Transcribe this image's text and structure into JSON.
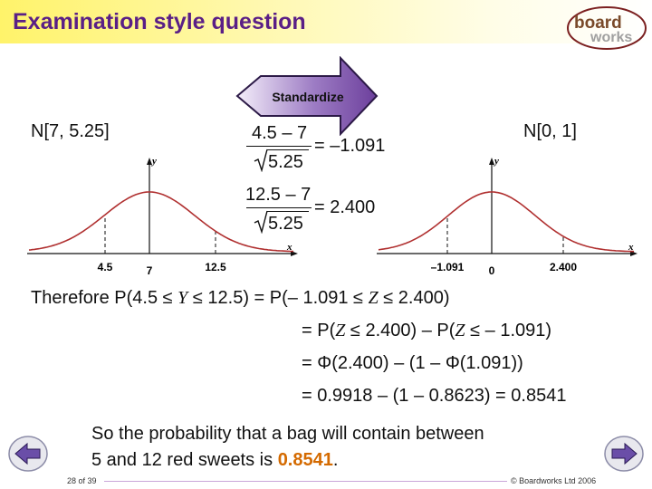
{
  "header": {
    "title": "Examination style question"
  },
  "logo": {
    "line1": "board",
    "line2": "works"
  },
  "arrow": {
    "label": "Standardize"
  },
  "left_dist": {
    "label": "N[7, 5.25]"
  },
  "right_dist": {
    "label": "N[0, 1]"
  },
  "frac1": {
    "numerator": "4.5 – 7",
    "denominator": "5.25",
    "result": "= –1.091"
  },
  "frac2": {
    "numerator": "12.5 – 7",
    "denominator": "5.25",
    "result": "= 2.400"
  },
  "left_graph": {
    "y_label": "y",
    "x_label": "x",
    "ticks": [
      "4.5",
      "7",
      "12.5"
    ]
  },
  "right_graph": {
    "y_label": "y",
    "x_label": "x",
    "ticks": [
      "–1.091",
      "0",
      "2.400"
    ]
  },
  "working": {
    "line1_prefix": "Therefore  P(4.5 ≤ ",
    "line1_var": "Y",
    "line1_mid": " ≤ 12.5) = P(– 1.091 ≤ ",
    "line1_var2": "Z",
    "line1_suffix": " ≤ 2.400)",
    "line2_prefix": "= P(",
    "line2_var": "Z",
    "line2_mid": " ≤ 2.400) – P(",
    "line2_var2": "Z",
    "line2_suffix": " ≤ – 1.091)",
    "line3": "= Φ(2.400) – (1 – Φ(1.091))",
    "line4": "= 0.9918 – (1 – 0.8623) = 0.8541"
  },
  "conclusion": {
    "line1": "So the probability that a bag will contain between",
    "line2_prefix": "5 and 12 red sweets is ",
    "line2_value": "0.8541",
    "line2_suffix": "."
  },
  "footer": {
    "slide_number": "28 of 39",
    "copyright": "© Boardworks Ltd 2006"
  },
  "colors": {
    "title": "#5a1f86",
    "curve": "#b03030",
    "highlight": "#d46a00",
    "arrow": "#7b4fa6"
  }
}
